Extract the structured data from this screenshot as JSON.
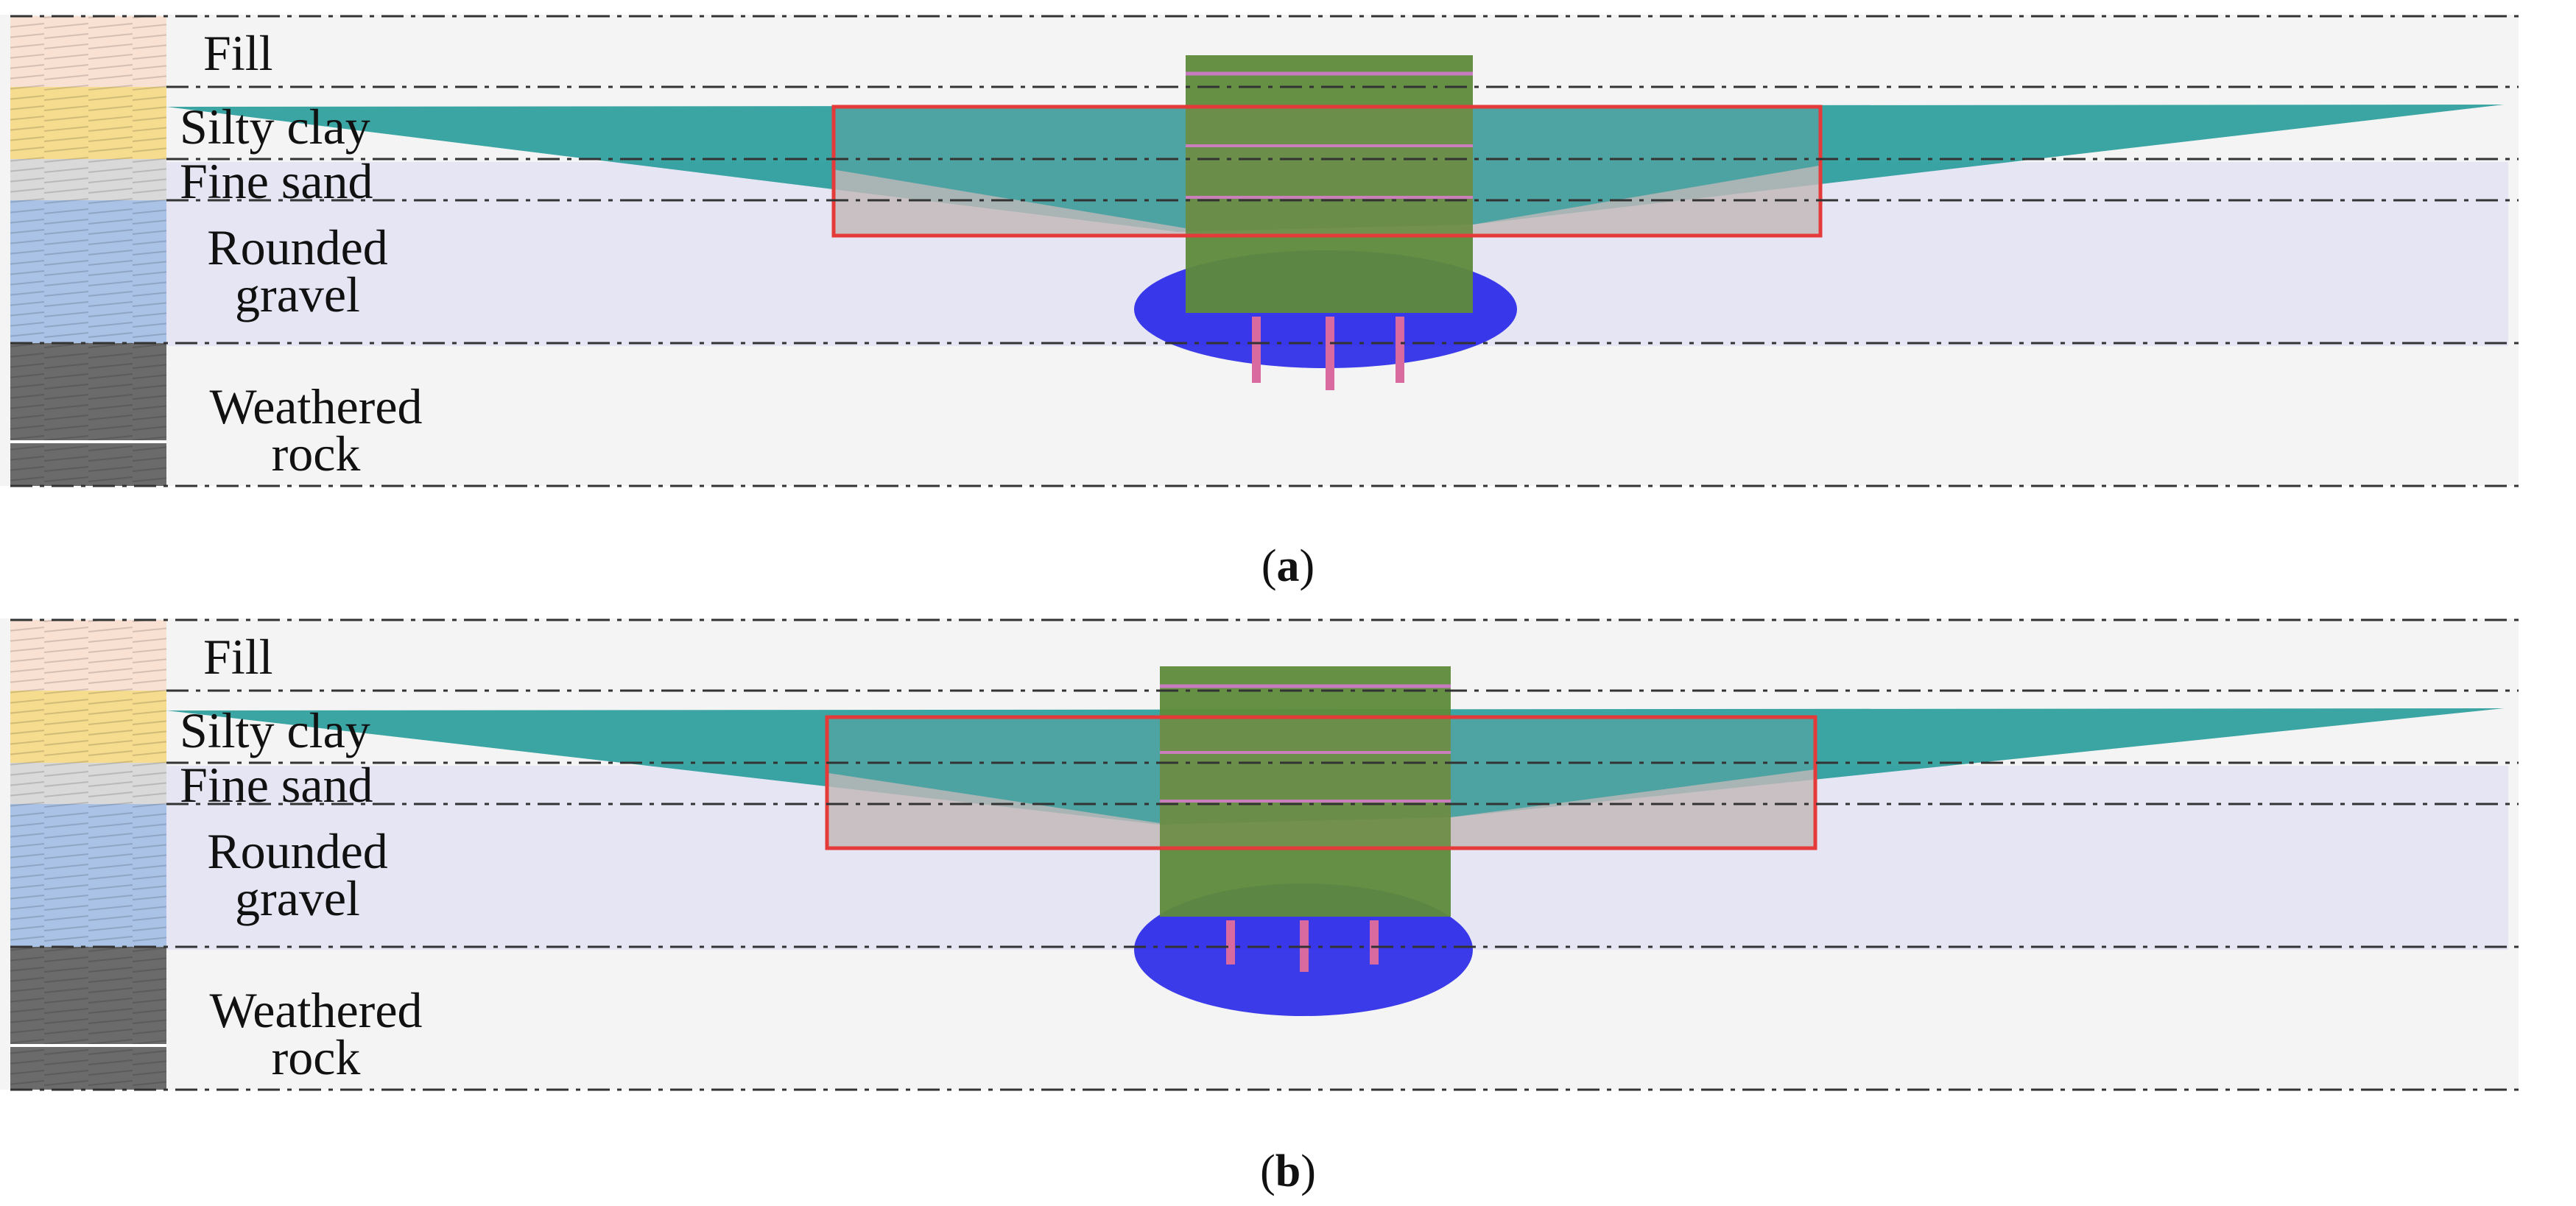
{
  "colors": {
    "fill": "#f8e0d2",
    "silty_clay": "#f5dc8e",
    "fine_sand": "#d9d9d9",
    "rounded_gravel": "#a9c2e6",
    "weathered_rock": "#6b6b6b",
    "background": "#f2f2f2",
    "teal_zone": "#2a9d9b",
    "foundation_block": "#5e8a3a",
    "highlight_box": "#e43a3a",
    "particles": "#1010e0"
  },
  "panels": [
    {
      "layers": [
        {
          "name": "Fill"
        },
        {
          "name": "Silty clay"
        },
        {
          "name": "Fine sand"
        },
        {
          "name_line1": "Rounded",
          "name_line2": "gravel"
        },
        {
          "name_line1": "Weathered",
          "name_line2": "rock"
        }
      ],
      "caption": {
        "open": "(",
        "letter": "a",
        "close": ")"
      }
    },
    {
      "layers": [
        {
          "name": "Fill"
        },
        {
          "name": "Silty clay"
        },
        {
          "name": "Fine sand"
        },
        {
          "name_line1": "Rounded",
          "name_line2": "gravel"
        },
        {
          "name_line1": "Weathered",
          "name_line2": "rock"
        }
      ],
      "caption": {
        "open": "(",
        "letter": "b",
        "close": ")"
      }
    }
  ]
}
